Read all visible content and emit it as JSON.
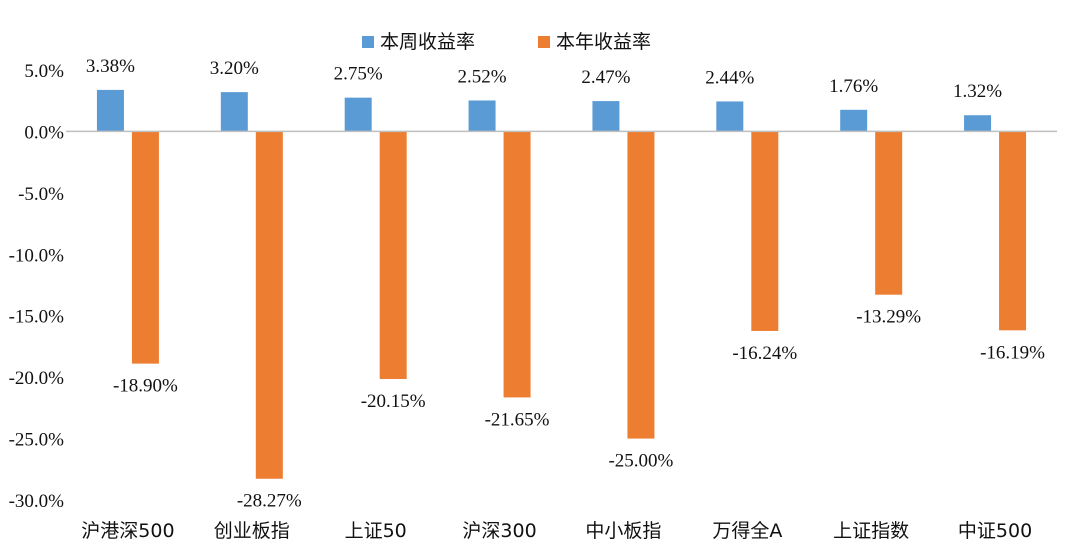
{
  "chart_data": {
    "type": "bar",
    "categories": [
      "沪港深500",
      "创业板指",
      "上证50",
      "沪深300",
      "中小板指",
      "万得全A",
      "上证指数",
      "中证500"
    ],
    "series": [
      {
        "name": "本周收益率",
        "color": "#5B9BD5",
        "values": [
          3.38,
          3.2,
          2.75,
          2.52,
          2.47,
          2.44,
          1.76,
          1.32
        ],
        "labels": [
          "3.38%",
          "3.20%",
          "2.75%",
          "2.52%",
          "2.47%",
          "2.44%",
          "1.76%",
          "1.32%"
        ]
      },
      {
        "name": "本年收益率",
        "color": "#ED7D31",
        "values": [
          -18.9,
          -28.27,
          -20.15,
          -21.65,
          -25.0,
          -16.24,
          -13.29,
          -16.19
        ],
        "labels": [
          "-18.90%",
          "-28.27%",
          "-20.15%",
          "-21.65%",
          "-25.00%",
          "-16.24%",
          "-13.29%",
          "-16.19%"
        ]
      }
    ],
    "ylim": [
      -30,
      5
    ],
    "yticks": [
      5,
      0,
      -5,
      -10,
      -15,
      -20,
      -25,
      -30
    ],
    "ytick_labels": [
      "5.0%",
      "0.0%",
      "-5.0%",
      "-10.0%",
      "-15.0%",
      "-20.0%",
      "-25.0%",
      "-30.0%"
    ],
    "legend_position": "top-center",
    "grid": false
  }
}
